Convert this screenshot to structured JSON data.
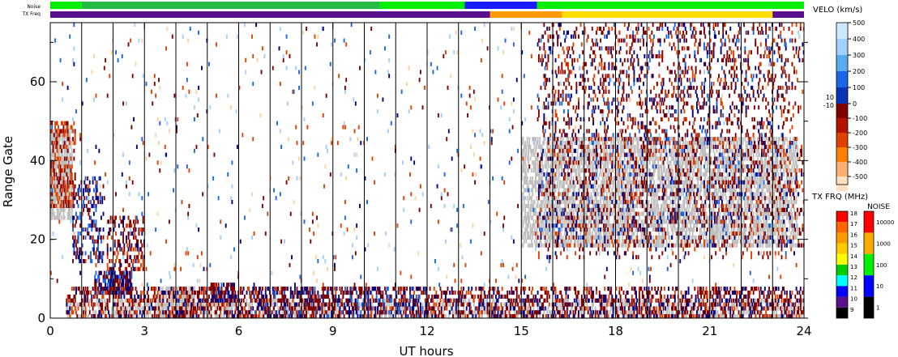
{
  "chart_data": {
    "type": "heatmap",
    "xlabel": "UT hours",
    "ylabel": "Range Gate",
    "xlim": [
      0,
      24
    ],
    "ylim": [
      0,
      75
    ],
    "x_ticks": [
      "0",
      "3",
      "6",
      "9",
      "12",
      "15",
      "18",
      "21",
      "24"
    ],
    "x_tick_values": [
      0,
      3,
      6,
      9,
      12,
      15,
      18,
      21,
      24
    ],
    "y_ticks": [
      "0",
      "20",
      "40",
      "60"
    ],
    "y_tick_values": [
      0,
      20,
      40,
      60
    ],
    "scan_boundaries_ut": [
      1,
      2,
      3,
      4,
      5,
      6,
      7,
      8,
      9,
      10,
      11,
      12,
      13,
      14,
      15,
      16,
      17,
      18,
      19,
      20,
      21,
      22,
      23
    ],
    "ground_scatter_color": "#c0c0c0",
    "top_bars": {
      "noise_label": "Noise",
      "txfreq_label": "TX Freq",
      "noise_segments": [
        {
          "start": 0,
          "end": 1.0,
          "color": "#00ee00"
        },
        {
          "start": 1.0,
          "end": 10.5,
          "color": "#22bb44"
        },
        {
          "start": 10.5,
          "end": 13.2,
          "color": "#00ee00"
        },
        {
          "start": 13.2,
          "end": 15.5,
          "color": "#1a1aff"
        },
        {
          "start": 15.5,
          "end": 24,
          "color": "#00ee00"
        }
      ],
      "txfreq_segments": [
        {
          "start": 0,
          "end": 14.0,
          "color": "#5a0f8c"
        },
        {
          "start": 14.0,
          "end": 16.3,
          "color": "#ff9900"
        },
        {
          "start": 16.3,
          "end": 23.0,
          "color": "#ffdd00"
        },
        {
          "start": 23.0,
          "end": 24,
          "color": "#5a0f8c"
        }
      ]
    },
    "scatter_regions": [
      {
        "name": "gs-early",
        "t0": 0.0,
        "t1": 0.7,
        "g0": 25,
        "g1": 48,
        "type": "ground",
        "density": 0.7
      },
      {
        "name": "near-range-gs",
        "t0": 0.5,
        "t1": 24,
        "g0": 0,
        "g1": 5,
        "type": "ground",
        "density": 0.4
      },
      {
        "name": "gs-pre4",
        "t0": 3.4,
        "t1": 4.6,
        "g0": 0,
        "g1": 8,
        "type": "ground",
        "density": 0.8
      },
      {
        "name": "gs-afternoon",
        "t0": 15.0,
        "t1": 23.8,
        "g0": 18,
        "g1": 46,
        "type": "ground",
        "density": 0.55
      },
      {
        "name": "neg-early",
        "t0": 0.0,
        "t1": 0.8,
        "g0": 28,
        "g1": 50,
        "type": "velocity",
        "v": -150,
        "density": 0.35
      },
      {
        "name": "pos-1-2",
        "t0": 0.7,
        "t1": 1.7,
        "g0": 14,
        "g1": 36,
        "type": "velocity",
        "v": 30,
        "density": 0.3
      },
      {
        "name": "neg-2-3",
        "t0": 1.8,
        "t1": 3.0,
        "g0": 12,
        "g1": 26,
        "type": "velocity",
        "v": -80,
        "density": 0.3
      },
      {
        "name": "pos-2",
        "t0": 1.4,
        "t1": 2.6,
        "g0": 6,
        "g1": 12,
        "type": "velocity",
        "v": 20,
        "density": 0.7
      },
      {
        "name": "pos-5",
        "t0": 5.1,
        "t1": 5.9,
        "g0": 4,
        "g1": 9,
        "type": "velocity",
        "v": 20,
        "density": 0.6
      },
      {
        "name": "neg-low-all",
        "t0": 0.5,
        "t1": 24,
        "g0": 0,
        "g1": 8,
        "type": "velocity",
        "v": -60,
        "density": 0.35
      },
      {
        "name": "pos-low-mid",
        "t0": 6.5,
        "t1": 12.0,
        "g0": 0,
        "g1": 8,
        "type": "velocity",
        "v": 30,
        "density": 0.18
      },
      {
        "name": "pos-afternoon",
        "t0": 15.5,
        "t1": 23.5,
        "g0": 18,
        "g1": 75,
        "type": "velocity",
        "v": 15,
        "density": 0.08
      },
      {
        "name": "neg-afternoon",
        "t0": 15.5,
        "t1": 24.0,
        "g0": 15,
        "g1": 75,
        "type": "velocity",
        "v": -100,
        "density": 0.1
      },
      {
        "name": "sparse-all",
        "t0": 0.0,
        "t1": 24.0,
        "g0": 8,
        "g1": 75,
        "type": "velocity",
        "v": 0,
        "density": 0.018
      }
    ],
    "velo_legend": {
      "title": "VELO (km/s)",
      "positive_ticks": [
        "500",
        "400",
        "300",
        "200",
        "100",
        "0"
      ],
      "positive_colors": [
        "#cfe8ff",
        "#9fd0ff",
        "#5aaaf0",
        "#1a66e6",
        "#0a32b4",
        "#000080"
      ],
      "zero_labels": [
        "10",
        "0",
        "-10"
      ],
      "negative_ticks": [
        "-100",
        "-200",
        "-300",
        "-400",
        "-500"
      ],
      "negative_colors": [
        "#800000",
        "#b01400",
        "#e04000",
        "#ff8000",
        "#ffb070",
        "#ffe0c0"
      ]
    },
    "txfrq_legend": {
      "title": "TX FRQ (MHz)",
      "ticks": [
        "18",
        "17",
        "16",
        "15",
        "14",
        "13",
        "12",
        "11",
        "10",
        "9"
      ],
      "colors": [
        "#ff0000",
        "#ff6600",
        "#ff9900",
        "#ffcc00",
        "#ffff00",
        "#00cc00",
        "#00ffff",
        "#0000ff",
        "#5a0f8c",
        "#000000"
      ]
    },
    "noise_legend": {
      "title": "NOISE",
      "ticks": [
        "10000",
        "1000",
        "100",
        "10",
        "1"
      ],
      "colors": [
        "#ff0000",
        "#ffaa00",
        "#00ee00",
        "#0000ff",
        "#000000"
      ]
    },
    "scatter_colors": {
      "ground": "#c0c0c0",
      "pos_low": "#000080",
      "pos_mid": "#1a66e6",
      "pos_high": "#9fd0ff",
      "neg_low": "#800000",
      "neg_mid": "#e04000",
      "neg_high": "#ffd0a0"
    }
  }
}
